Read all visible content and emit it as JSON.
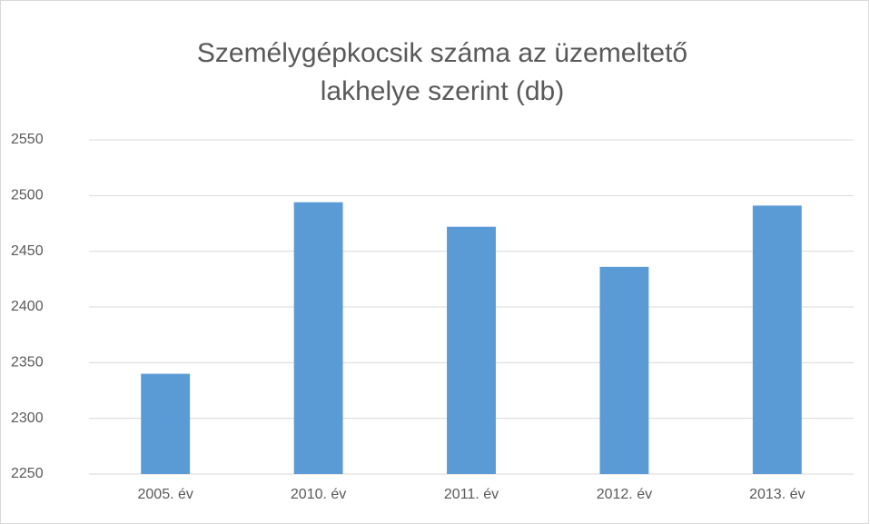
{
  "chart_data": {
    "type": "bar",
    "title": "Személygépkocsik száma az üzemeltető lakhelye szerint (db)",
    "categories": [
      "2005. év",
      "2010. év",
      "2011. év",
      "2012. év",
      "2013. év"
    ],
    "values": [
      2340,
      2494,
      2472,
      2436,
      2491
    ],
    "color": "#5b9bd5",
    "ylim": [
      2250,
      2550
    ],
    "yticks": [
      2250,
      2300,
      2350,
      2400,
      2450,
      2500,
      2550
    ],
    "grid": true
  }
}
